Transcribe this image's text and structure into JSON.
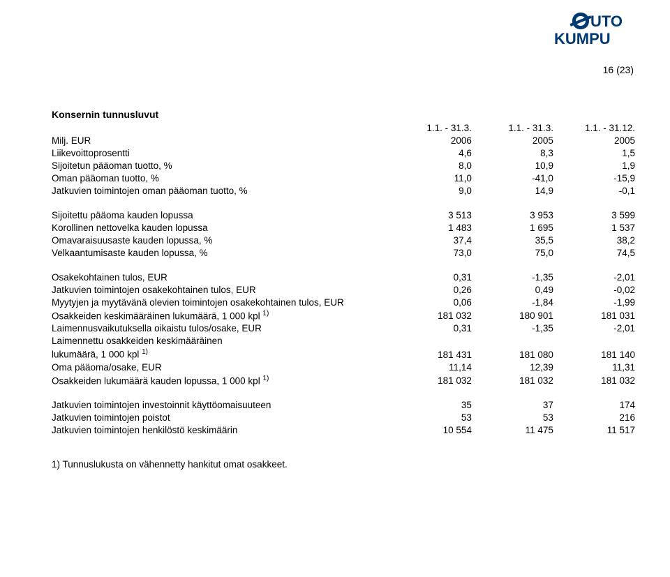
{
  "page_number": "16 (23)",
  "logo": {
    "text_top": "OUTO",
    "text_bottom": "KUMPU",
    "color": "#003a72"
  },
  "title": "Konsernin tunnusluvut",
  "col_headers": {
    "row1": [
      "1.1. - 31.3.",
      "1.1. - 31.3.",
      "1.1. - 31.12."
    ],
    "row2_label": "Milj. EUR",
    "row2": [
      "2006",
      "2005",
      "2005"
    ]
  },
  "section1": [
    {
      "label": "Liikevoittoprosentti",
      "v": [
        "4,6",
        "8,3",
        "1,5"
      ]
    },
    {
      "label": "Sijoitetun pääoman tuotto, %",
      "v": [
        "8,0",
        "10,9",
        "1,9"
      ]
    },
    {
      "label": "Oman pääoman tuotto, %",
      "v": [
        "11,0",
        "-41,0",
        "-15,9"
      ]
    },
    {
      "label": "Jatkuvien toimintojen oman pääoman tuotto, %",
      "v": [
        "9,0",
        "14,9",
        "-0,1"
      ]
    }
  ],
  "section2": [
    {
      "label": "Sijoitettu pääoma kauden lopussa",
      "v": [
        "3 513",
        "3 953",
        "3 599"
      ]
    },
    {
      "label": "Korollinen nettovelka kauden lopussa",
      "v": [
        "1 483",
        "1 695",
        "1 537"
      ]
    },
    {
      "label": "Omavaraisuusaste kauden lopussa, %",
      "v": [
        "37,4",
        "35,5",
        "38,2"
      ]
    },
    {
      "label": "Velkaantumisaste kauden lopussa, %",
      "v": [
        "73,0",
        "75,0",
        "74,5"
      ]
    }
  ],
  "section3": [
    {
      "label": "Osakekohtainen tulos, EUR",
      "v": [
        "0,31",
        "-1,35",
        "-2,01"
      ]
    },
    {
      "label": "Jatkuvien toimintojen osakekohtainen tulos, EUR",
      "v": [
        "0,26",
        "0,49",
        "-0,02"
      ]
    },
    {
      "label": "Myytyjen ja myytävänä olevien toimintojen osakekohtainen tulos, EUR",
      "v": [
        "0,06",
        "-1,84",
        "-1,99"
      ]
    },
    {
      "label": "Osakkeiden keskimääräinen lukumäärä, 1 000 kpl",
      "sup": "1)",
      "v": [
        "181 032",
        "180 901",
        "181 031"
      ]
    },
    {
      "label": "Laimennusvaikutuksella oikaistu tulos/osake, EUR",
      "v": [
        "0,31",
        "-1,35",
        "-2,01"
      ]
    },
    {
      "label": "Laimennettu osakkeiden keskimääräinen",
      "v": [
        "",
        "",
        ""
      ]
    },
    {
      "label": "lukumäärä, 1 000 kpl",
      "sup": "1)",
      "v": [
        "181 431",
        "181 080",
        "181 140"
      ]
    },
    {
      "label": "Oma pääoma/osake, EUR",
      "v": [
        "11,14",
        "12,39",
        "11,31"
      ]
    },
    {
      "label": "Osakkeiden lukumäärä kauden lopussa, 1 000 kpl",
      "sup": "1)",
      "v": [
        "181 032",
        "181 032",
        "181 032"
      ]
    }
  ],
  "section4": [
    {
      "label": "Jatkuvien toimintojen investoinnit käyttöomaisuuteen",
      "v": [
        "35",
        "37",
        "174"
      ]
    },
    {
      "label": "Jatkuvien toimintojen poistot",
      "v": [
        "53",
        "53",
        "216"
      ]
    },
    {
      "label": "Jatkuvien toimintojen henkilöstö keskimäärin",
      "v": [
        "10 554",
        "11 475",
        "11 517"
      ]
    }
  ],
  "footnote": "1) Tunnuslukusta on vähennetty hankitut omat osakkeet."
}
